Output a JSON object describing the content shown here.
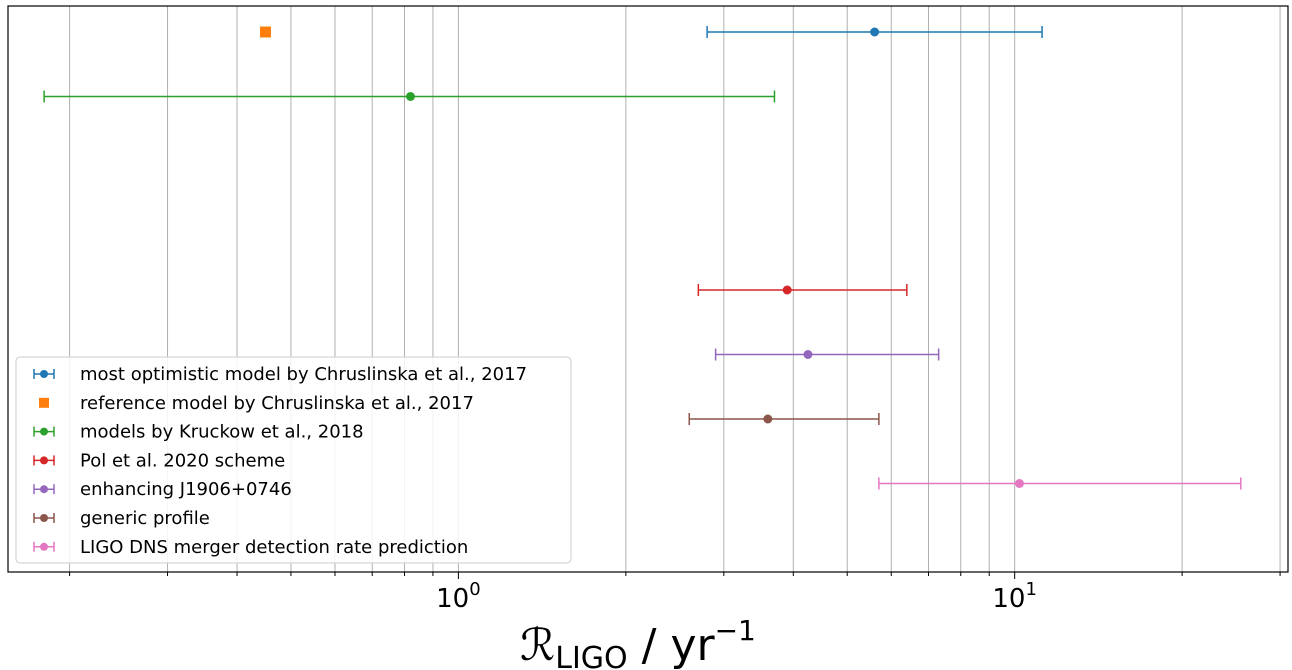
{
  "chart_data": {
    "type": "scatter",
    "title": "",
    "xlabel": "R_LIGO / yr^-1",
    "xlabel_parts": {
      "script_r": "ℛ",
      "subscript": "LIGO",
      "slash": " / yr",
      "superscript": "−1"
    },
    "x_scale": "log",
    "xlim": [
      0.155,
      31
    ],
    "x_major_ticks": [
      {
        "value": 1,
        "base": "10",
        "exp": "0"
      },
      {
        "value": 10,
        "base": "10",
        "exp": "1"
      }
    ],
    "grid": true,
    "legend_placement": "lower-left",
    "series": [
      {
        "name": "most optimistic model by Chruslinska et al., 2017",
        "color": "#1f77b4",
        "marker": "circle",
        "errorbar": true,
        "x": 5.6,
        "x_low": 2.8,
        "x_high": 11.2,
        "row": 1
      },
      {
        "name": "reference model by Chruslinska et al., 2017",
        "color": "#ff7f0e",
        "marker": "square",
        "errorbar": false,
        "x": 0.45,
        "row": 1
      },
      {
        "name": "models by Kruckow et al., 2018",
        "color": "#2ca02c",
        "marker": "circle",
        "errorbar": true,
        "x": 0.82,
        "x_low": 0.18,
        "x_high": 3.7,
        "row": 2
      },
      {
        "name": "Pol et al. 2020 scheme",
        "color": "#d62728",
        "marker": "circle",
        "errorbar": true,
        "x": 3.9,
        "x_low": 2.7,
        "x_high": 6.4,
        "row": 5
      },
      {
        "name": "enhancing J1906+0746",
        "color": "#9467bd",
        "marker": "circle",
        "errorbar": true,
        "x": 4.25,
        "x_low": 2.9,
        "x_high": 7.3,
        "row": 6
      },
      {
        "name": "generic profile",
        "color": "#8c564b",
        "marker": "circle",
        "errorbar": true,
        "x": 3.6,
        "x_low": 2.6,
        "x_high": 5.7,
        "row": 7
      },
      {
        "name": "LIGO DNS merger detection rate prediction",
        "color": "#e377c2",
        "marker": "circle",
        "errorbar": true,
        "x": 10.2,
        "x_low": 5.7,
        "x_high": 25.5,
        "row": 8
      }
    ]
  }
}
